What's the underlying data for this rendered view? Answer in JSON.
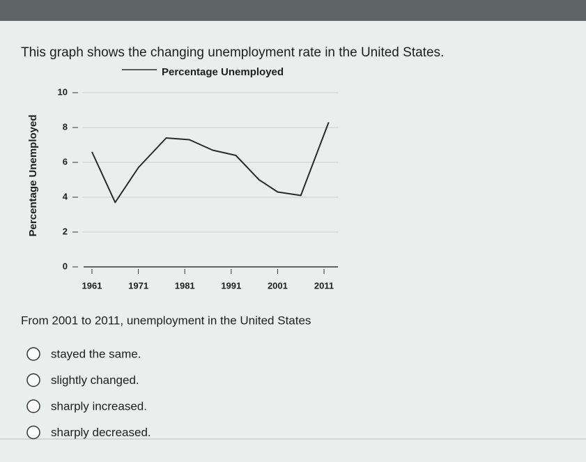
{
  "header": {
    "text": "This graph shows the changing unemployment rate in the United States."
  },
  "chart_data": {
    "type": "line",
    "legend": "Percentage Unemployed",
    "y_label": "Percentage Unemployed",
    "x": [
      1961,
      1966,
      1971,
      1977,
      1982,
      1987,
      1992,
      1997,
      2001,
      2006,
      2012
    ],
    "series": [
      {
        "name": "Percentage Unemployed",
        "color": "#2a2a2a",
        "values": [
          6.6,
          3.7,
          5.7,
          7.4,
          7.3,
          6.7,
          6.4,
          5.0,
          4.3,
          4.1,
          8.3
        ]
      }
    ],
    "xlim": [
      1958,
      2014
    ],
    "xticks": [
      1961,
      1971,
      1981,
      1991,
      2001,
      2011
    ],
    "ylim": [
      0,
      10
    ],
    "yticks": [
      0,
      2,
      4,
      6,
      8,
      10
    ],
    "grid": true
  },
  "question": {
    "text": "From 2001 to 2011, unemployment in the United States"
  },
  "options": [
    "stayed the same.",
    "slightly changed.",
    "sharply increased.",
    "sharply decreased."
  ]
}
